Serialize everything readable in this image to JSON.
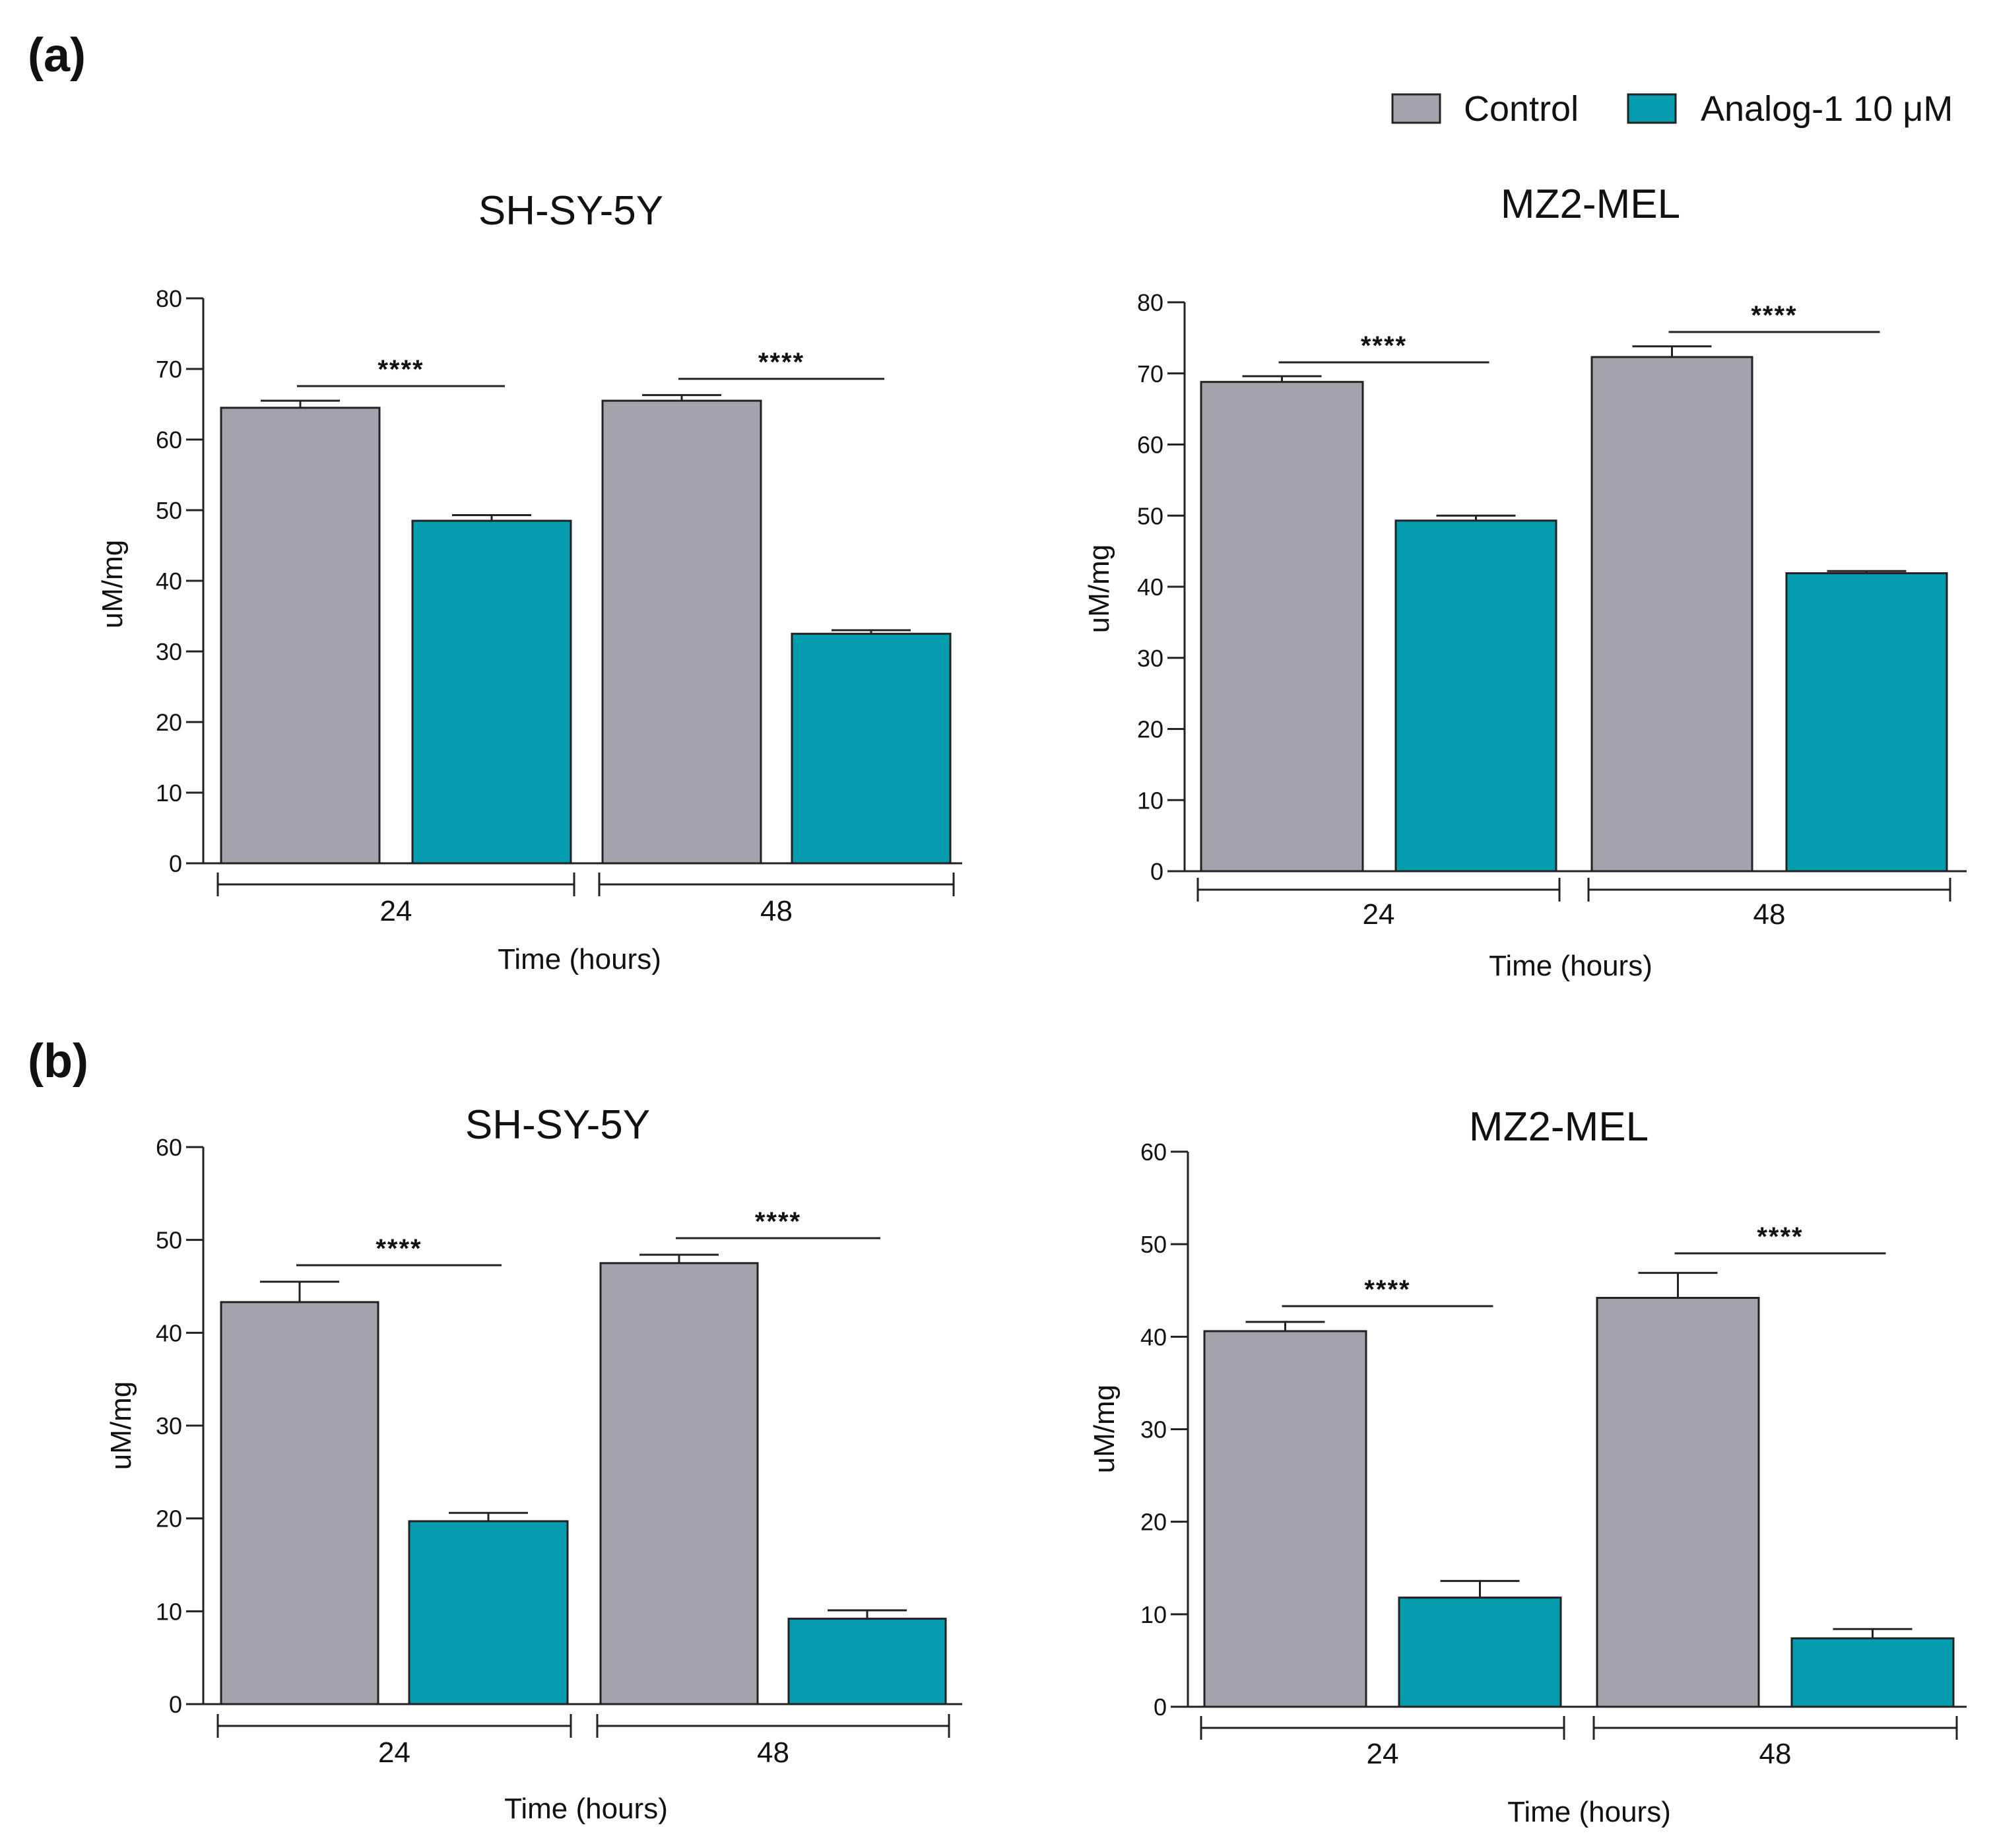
{
  "panels": [
    {
      "label": "(a)"
    },
    {
      "label": "(b)"
    }
  ],
  "legend": [
    {
      "name": "Control",
      "color": "#a4a3ab"
    },
    {
      "name": "Analog-1 10 μM",
      "color": "#069caf"
    }
  ],
  "chart_data": [
    {
      "type": "bar",
      "panel": "(a)",
      "title": "SH-SY-5Y",
      "categories": [
        "24",
        "48"
      ],
      "series": [
        {
          "name": "Control",
          "values": [
            64.5,
            65.5
          ],
          "errors": [
            1.0,
            0.8
          ]
        },
        {
          "name": "Analog-1 10 μM",
          "values": [
            48.5,
            32.5
          ],
          "errors": [
            0.8,
            0.5
          ]
        }
      ],
      "significance": [
        "****",
        "****"
      ],
      "xlabel": "Time (hours)",
      "ylabel": "uM/mg",
      "ylim": [
        0,
        80
      ],
      "yticks": [
        0,
        10,
        20,
        30,
        40,
        50,
        60,
        70,
        80
      ]
    },
    {
      "type": "bar",
      "panel": "(a)",
      "title": "MZ2-MEL",
      "categories": [
        "24",
        "48"
      ],
      "series": [
        {
          "name": "Control",
          "values": [
            68.8,
            72.3
          ],
          "errors": [
            0.8,
            1.5
          ]
        },
        {
          "name": "Analog-1 10 μM",
          "values": [
            49.3,
            41.9
          ],
          "errors": [
            0.7,
            0.3
          ]
        }
      ],
      "significance": [
        "****",
        "****"
      ],
      "xlabel": "Time (hours)",
      "ylabel": "uM/mg",
      "ylim": [
        0,
        80
      ],
      "yticks": [
        0,
        10,
        20,
        30,
        40,
        50,
        60,
        70,
        80
      ]
    },
    {
      "type": "bar",
      "panel": "(b)",
      "title": "SH-SY-5Y",
      "categories": [
        "24",
        "48"
      ],
      "series": [
        {
          "name": "Control",
          "values": [
            43.3,
            47.5
          ],
          "errors": [
            2.2,
            0.9
          ]
        },
        {
          "name": "Analog-1 10 μM",
          "values": [
            19.7,
            9.2
          ],
          "errors": [
            0.9,
            0.9
          ]
        }
      ],
      "significance": [
        "****",
        "****"
      ],
      "xlabel": "Time (hours)",
      "ylabel": "uM/mg",
      "ylim": [
        0,
        60
      ],
      "yticks": [
        0,
        10,
        20,
        30,
        40,
        50,
        60
      ]
    },
    {
      "type": "bar",
      "panel": "(b)",
      "title": "MZ2-MEL",
      "categories": [
        "24",
        "48"
      ],
      "series": [
        {
          "name": "Control",
          "values": [
            40.6,
            44.2
          ],
          "errors": [
            1.0,
            2.7
          ]
        },
        {
          "name": "Analog-1 10 μM",
          "values": [
            11.8,
            7.4
          ],
          "errors": [
            1.8,
            1.0
          ]
        }
      ],
      "significance": [
        "****",
        "****"
      ],
      "xlabel": "Time (hours)",
      "ylabel": "uM/mg",
      "ylim": [
        0,
        60
      ],
      "yticks": [
        0,
        10,
        20,
        30,
        40,
        50,
        60
      ]
    }
  ]
}
